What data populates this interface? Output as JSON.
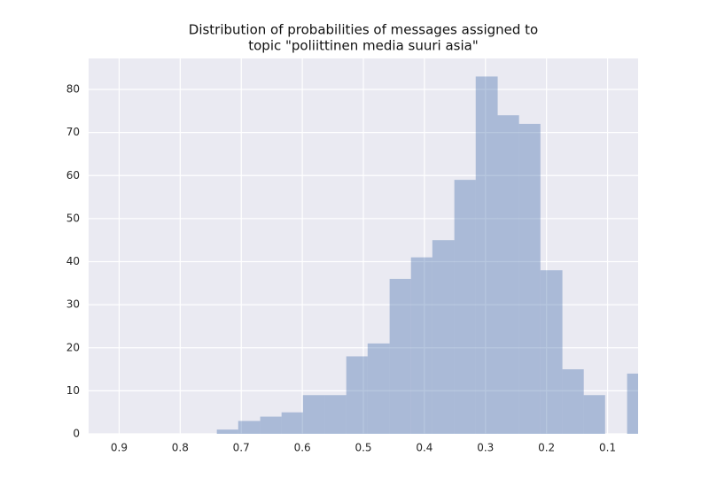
{
  "chart_data": {
    "type": "histogram",
    "title": [
      "Distribution of probabilities of messages assigned to",
      "topic \"poliittinen media suuri asia\""
    ],
    "bins": [
      0.74,
      0.705,
      0.669,
      0.634,
      0.599,
      0.563,
      0.528,
      0.493,
      0.457,
      0.422,
      0.387,
      0.351,
      0.316,
      0.28,
      0.245,
      0.21,
      0.174,
      0.139,
      0.104,
      0.068,
      0.033
    ],
    "counts": [
      1,
      3,
      4,
      5,
      9,
      9,
      18,
      21,
      36,
      41,
      45,
      59,
      83,
      74,
      72,
      38,
      15,
      9,
      0,
      14
    ],
    "color": "#4c72b0",
    "xlim": [
      0.95,
      0.05
    ],
    "xticks": [
      0.9,
      0.8,
      0.7,
      0.6,
      0.5,
      0.4,
      0.3,
      0.2,
      0.1
    ],
    "ylim": [
      0,
      87.2
    ],
    "yticks": [
      0,
      10,
      20,
      30,
      40,
      50,
      60,
      70,
      80
    ],
    "grid": true
  }
}
